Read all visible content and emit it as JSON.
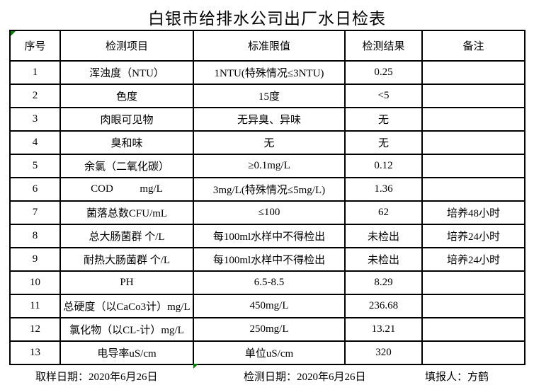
{
  "title": "白银市给排水公司出厂水日检表",
  "table": {
    "headers": [
      "序号",
      "检测项目",
      "标准限值",
      "检测结果",
      "备注"
    ],
    "rows": [
      [
        "1",
        "浑浊度（NTU）",
        "1NTU(特殊情况≤3NTU)",
        "0.25",
        ""
      ],
      [
        "2",
        "色度",
        "15度",
        "<5",
        ""
      ],
      [
        "3",
        "肉眼可见物",
        "无异臭、异味",
        "无",
        ""
      ],
      [
        "4",
        "臭和味",
        "无",
        "无",
        ""
      ],
      [
        "5",
        "余氯（二氧化碳）",
        "≥0.1mg/L",
        "0.12",
        ""
      ],
      [
        "6",
        "COD          mg/L",
        "3mg/L(特殊情况≤5mg/L)",
        "1.36",
        ""
      ],
      [
        "7",
        "菌落总数CFU/mL",
        "≤100",
        "62",
        "培养48小时"
      ],
      [
        "8",
        "总大肠菌群 个/L",
        "每100ml水样中不得检出",
        "未检出",
        "培养24小时"
      ],
      [
        "9",
        "耐热大肠菌群 个/L",
        "每100ml水样中不得检出",
        "未检出",
        "培养24小时"
      ],
      [
        "10",
        "PH",
        "6.5-8.5",
        "8.29",
        ""
      ],
      [
        "11",
        "总硬度（以CaCo3计）mg/L",
        "450mg/L",
        "236.68",
        ""
      ],
      [
        "12",
        "氯化物（以CL-计）mg/L",
        "250mg/L",
        "13.21",
        ""
      ],
      [
        "13",
        "电导率uS/cm",
        "单位uS/cm",
        "320",
        ""
      ]
    ]
  },
  "footer": {
    "sampling_date": "取样日期：2020年6月26日",
    "test_date": "检测日期：2020年6月26日",
    "reporter": "填报人：方鹤"
  },
  "marker_color": "#008000"
}
